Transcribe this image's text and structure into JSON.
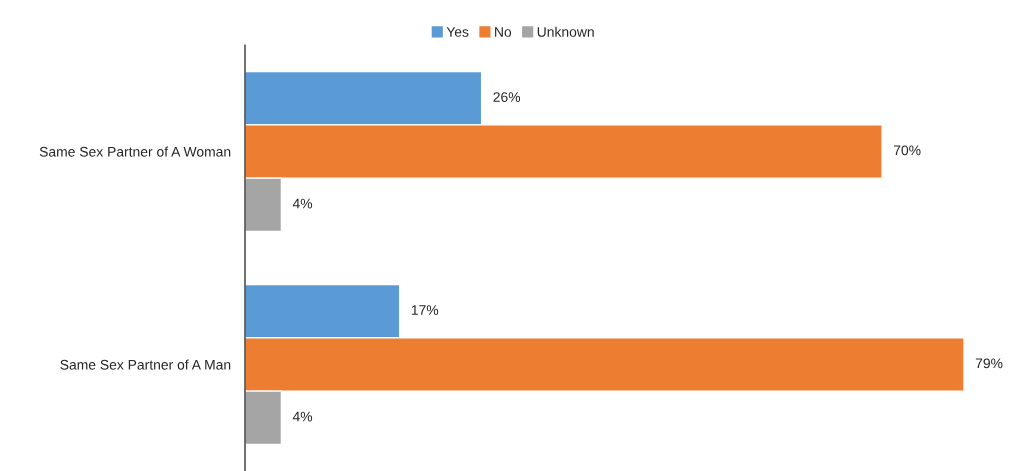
{
  "chart_data": {
    "type": "bar",
    "orientation": "horizontal",
    "categories": [
      "Same Sex Partner of A Woman",
      "Same Sex Partner of A Man"
    ],
    "series": [
      {
        "name": "Yes",
        "color": "#5b9bd5",
        "values": [
          26,
          17
        ],
        "value_labels": [
          "26%",
          "17%"
        ]
      },
      {
        "name": "No",
        "color": "#ed7d31",
        "values": [
          70,
          79
        ],
        "value_labels": [
          "70%",
          "79%"
        ]
      },
      {
        "name": "Unknown",
        "color": "#a5a5a5",
        "values": [
          4,
          4
        ],
        "value_labels": [
          "4%",
          "4%"
        ]
      }
    ],
    "legend": "top",
    "grid": false,
    "tick_labels": "y"
  }
}
